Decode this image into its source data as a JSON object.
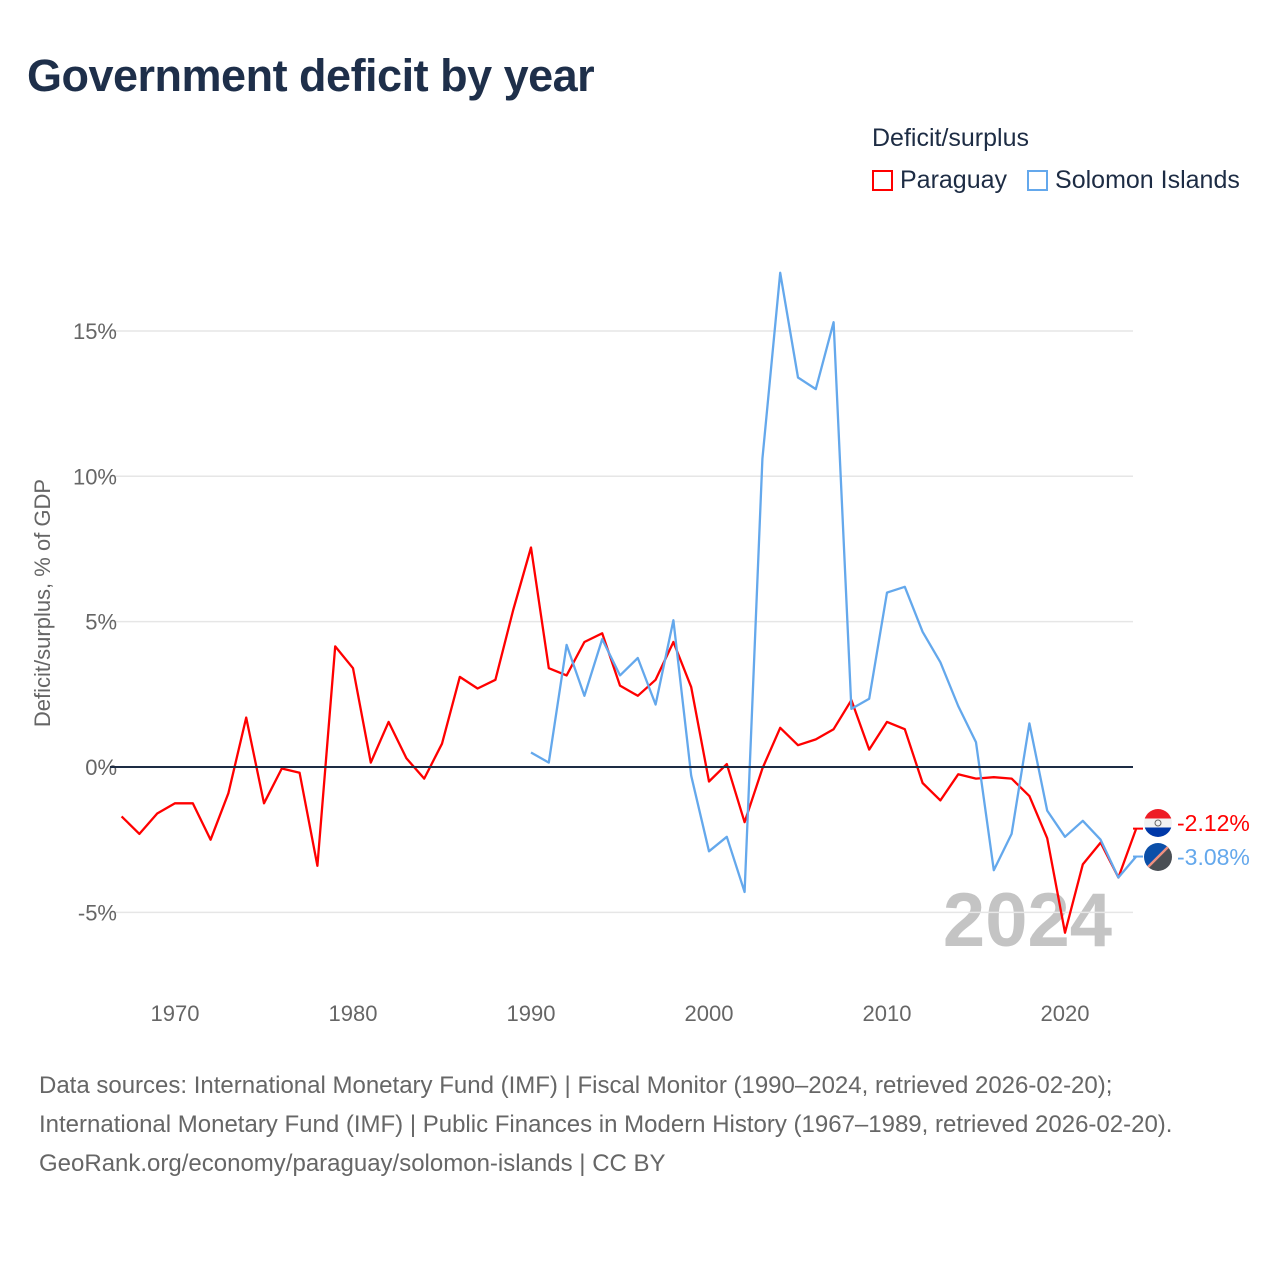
{
  "title": "Government deficit by year",
  "legend": {
    "title": "Deficit/surplus",
    "items": [
      "Paraguay",
      "Solomon Islands"
    ]
  },
  "footer": {
    "sources": "Data sources: International Monetary Fund (IMF) | Fiscal Monitor (1990–2024, retrieved 2026-02-20); International Monetary Fund (IMF) | Public Finances in Modern History (1967–1989, retrieved 2026-02-20).",
    "credit": "GeoRank.org/economy/paraguay/solomon-islands | CC BY"
  },
  "chart_data": {
    "type": "line",
    "title": "Government deficit by year",
    "xlabel": "",
    "ylabel": "Deficit/surplus, % of GDP",
    "xlim": [
      1967,
      2024
    ],
    "ylim": [
      -7,
      18
    ],
    "x_ticks": [
      1970,
      1980,
      1990,
      2000,
      2010,
      2020
    ],
    "y_ticks": [
      -5,
      0,
      5,
      10,
      15
    ],
    "y_tick_labels": [
      "-5%",
      "0%",
      "5%",
      "10%",
      "15%"
    ],
    "year_watermark": "2024",
    "series": [
      {
        "name": "Paraguay",
        "color": "#ff0000",
        "end_label": "-2.12%",
        "start": 1967,
        "values": [
          -1.7,
          -2.3,
          -1.6,
          -1.25,
          -1.25,
          -2.5,
          -0.9,
          1.7,
          -1.25,
          -0.05,
          -0.2,
          -3.4,
          4.15,
          3.4,
          0.15,
          1.55,
          0.3,
          -0.4,
          0.8,
          3.1,
          2.7,
          3.0,
          5.4,
          7.55,
          3.4,
          3.15,
          4.3,
          4.6,
          2.8,
          2.45,
          3.0,
          4.3,
          2.75,
          -0.5,
          0.1,
          -1.9,
          -0.05,
          1.35,
          0.75,
          0.95,
          1.3,
          2.3,
          0.6,
          1.55,
          1.3,
          -0.55,
          -1.15,
          -0.25,
          -0.4,
          -0.35,
          -0.4,
          -1.0,
          -2.45,
          -5.7,
          -3.35,
          -2.6,
          -3.8,
          -2.12
        ]
      },
      {
        "name": "Solomon Islands",
        "color": "#64a8ec",
        "end_label": "-3.08%",
        "start": 1990,
        "values": [
          0.5,
          0.15,
          4.2,
          2.45,
          4.4,
          3.15,
          3.75,
          2.15,
          5.05,
          -0.3,
          -2.9,
          -2.4,
          -4.3,
          10.6,
          17.0,
          13.4,
          13.0,
          15.3,
          2.0,
          2.35,
          6.0,
          6.2,
          4.65,
          3.6,
          2.1,
          0.85,
          -3.55,
          -2.3,
          1.5,
          -1.5,
          -2.4,
          -1.85,
          -2.5,
          -3.8,
          -3.08
        ]
      }
    ]
  }
}
